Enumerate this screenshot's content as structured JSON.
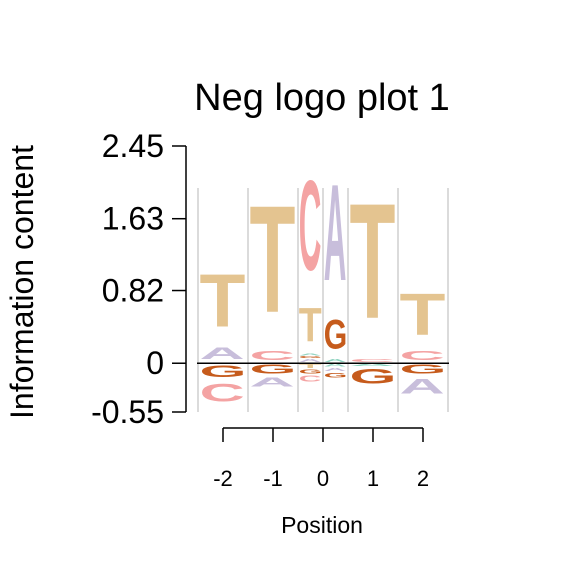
{
  "chart_data": {
    "type": "logo",
    "title": "Neg logo plot 1",
    "xlabel": "Position",
    "ylabel": "Information content",
    "ylim": [
      -0.55,
      2.45
    ],
    "yticks": [
      {
        "value": -0.55,
        "label": "-0.55"
      },
      {
        "value": 0,
        "label": "0"
      },
      {
        "value": 0.82,
        "label": "0.82"
      },
      {
        "value": 1.63,
        "label": "1.63"
      },
      {
        "value": 2.45,
        "label": "2.45"
      }
    ],
    "xticks": [
      {
        "value": -2,
        "label": "-2"
      },
      {
        "value": -1,
        "label": "-1"
      },
      {
        "value": 0,
        "label": "0"
      },
      {
        "value": 1,
        "label": "1"
      },
      {
        "value": 2,
        "label": "2"
      }
    ],
    "colors": {
      "A": "#c8bedb",
      "C": "#f4a3a3",
      "G": "#c65b1c",
      "T": "#e4c490",
      "N": "#8fd3c0"
    },
    "columns": [
      {
        "position": -2,
        "center": -2.0,
        "width": 1.0,
        "positive": [
          {
            "letter": "A",
            "height": 0.2
          },
          {
            "letter": "T",
            "height": 0.9
          }
        ],
        "negative": [
          {
            "letter": "G",
            "height": 0.2
          },
          {
            "letter": "C",
            "height": 0.3
          }
        ]
      },
      {
        "position": -1,
        "center": -1.0,
        "width": 1.0,
        "positive": [
          {
            "letter": "C",
            "height": 0.15
          },
          {
            "letter": "T",
            "height": 1.83
          }
        ],
        "negative": [
          {
            "letter": "G",
            "height": 0.15
          },
          {
            "letter": "A",
            "height": 0.15
          }
        ]
      },
      {
        "position": "0a",
        "center": -0.25,
        "width": 0.5,
        "positive": [
          {
            "letter": "A",
            "height": 0.05
          },
          {
            "letter": "G",
            "height": 0.03
          },
          {
            "letter": "N",
            "height": 0.03
          },
          {
            "letter": "T",
            "height": 0.58
          },
          {
            "letter": "C",
            "height": 1.53
          }
        ],
        "negative": [
          {
            "letter": "T",
            "height": 0.07
          },
          {
            "letter": "G",
            "height": 0.06
          },
          {
            "letter": "C",
            "height": 0.1
          }
        ]
      },
      {
        "position": "0b",
        "center": 0.25,
        "width": 0.5,
        "positive": [
          {
            "letter": "N",
            "height": 0.05
          },
          {
            "letter": "G",
            "height": 0.5
          },
          {
            "letter": "A",
            "height": 1.65
          }
        ],
        "negative": [
          {
            "letter": "N",
            "height": 0.05
          },
          {
            "letter": "A",
            "height": 0.05
          },
          {
            "letter": "G",
            "height": 0.08
          }
        ]
      },
      {
        "position": 1,
        "center": 1.0,
        "width": 1.0,
        "positive": [
          {
            "letter": "C",
            "height": 0.05
          },
          {
            "letter": "T",
            "height": 1.97
          }
        ],
        "negative": [
          {
            "letter": "N",
            "height": 0.04
          },
          {
            "letter": "G",
            "height": 0.25
          }
        ]
      },
      {
        "position": 2,
        "center": 2.0,
        "width": 1.0,
        "positive": [
          {
            "letter": "C",
            "height": 0.15
          },
          {
            "letter": "T",
            "height": 0.71
          }
        ],
        "negative": [
          {
            "letter": "G",
            "height": 0.15
          },
          {
            "letter": "A",
            "height": 0.25
          }
        ]
      }
    ],
    "separators": [
      -2.5,
      -1.5,
      -0.5,
      0.0,
      0.5,
      1.5,
      2.5
    ]
  }
}
